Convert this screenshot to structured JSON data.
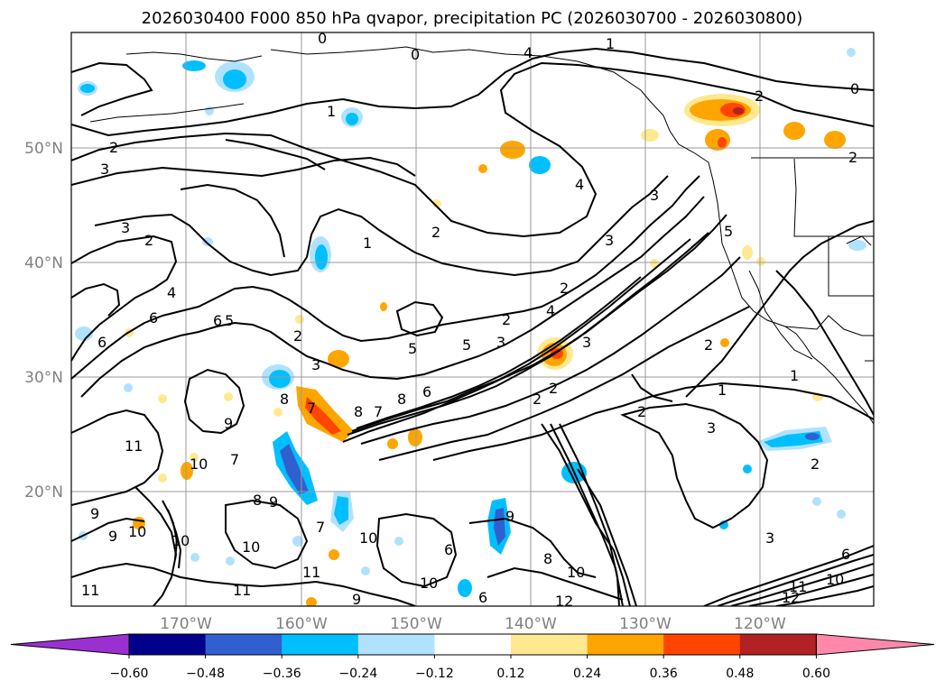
{
  "title": "2026030400 F000 850 hPa qvapor, precipitation PC (2026030700 - 2026030800)",
  "lat_labels": [
    "50°N",
    "40°N",
    "30°N",
    "20°N"
  ],
  "lon_labels": [
    "170°W",
    "160°W",
    "150°W",
    "140°W",
    "130°W",
    "120°W"
  ],
  "colorbar": {
    "ticks": [
      "−0.60",
      "−0.48",
      "−0.36",
      "−0.24",
      "−0.12",
      "0.12",
      "0.24",
      "0.36",
      "0.48",
      "0.60"
    ],
    "colors": [
      "#9b30d0",
      "#00008b",
      "#3060d0",
      "#00bfff",
      "#b0e2ff",
      "#ffffff",
      "#ffe990",
      "#ffa500",
      "#ff4500",
      "#b22222",
      "#ff88aa"
    ]
  },
  "contour_labels": [
    "0",
    "1",
    "2",
    "3",
    "4",
    "5",
    "6",
    "7",
    "8",
    "9",
    "10",
    "11",
    "12"
  ],
  "contour_label_instances": [
    "0",
    "0",
    "1",
    "4",
    "0",
    "2",
    "1",
    "2",
    "3",
    "3",
    "2",
    "1",
    "2",
    "4",
    "3",
    "3",
    "2",
    "5",
    "6",
    "5",
    "1",
    "2",
    "2",
    "3",
    "2",
    "4",
    "5",
    "6",
    "3",
    "6",
    "8",
    "7",
    "8",
    "7",
    "8",
    "6",
    "5",
    "4",
    "3",
    "2",
    "2",
    "1",
    "3",
    "2",
    "2",
    "9",
    "10",
    "9",
    "11",
    "7",
    "9",
    "10",
    "9",
    "10",
    "11",
    "10",
    "7",
    "8",
    "6",
    "9",
    "10",
    "11",
    "10",
    "6",
    "11",
    "9",
    "10",
    "12",
    "3",
    "2",
    "8",
    "6",
    "10",
    "11",
    "12"
  ]
}
